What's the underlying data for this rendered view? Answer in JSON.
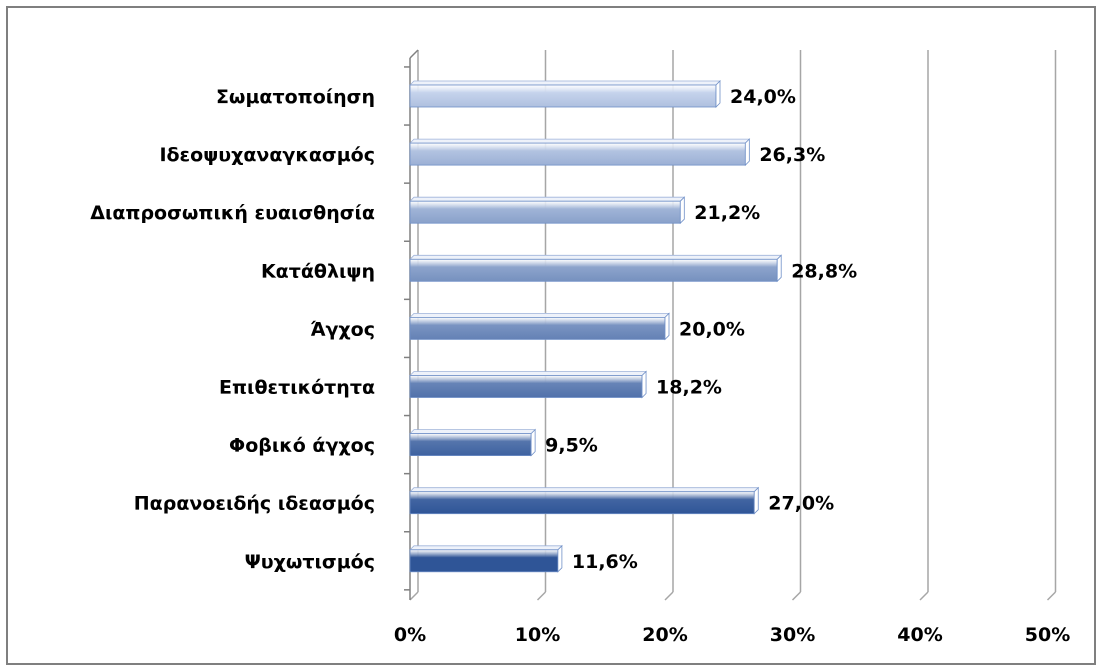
{
  "chart_data": {
    "type": "bar",
    "orientation": "horizontal",
    "categories": [
      "Σωματοποίηση",
      "Ιδεοψυχαναγκασμός",
      "Διαπροσωπική ευαισθησία",
      "Κατάθλιψη",
      "Άγχος",
      "Επιθετικότητα",
      "Φοβικό άγχος",
      "Παρανοειδής ιδεασμός",
      "Ψυχωτισμός"
    ],
    "values": [
      24.0,
      26.3,
      21.2,
      28.8,
      20.0,
      18.2,
      9.5,
      27.0,
      11.6
    ],
    "value_labels": [
      "24,0%",
      "26,3%",
      "21,2%",
      "28,8%",
      "20,0%",
      "18,2%",
      "9,5%",
      "27,0%",
      "11,6%"
    ],
    "xlim": [
      0,
      50
    ],
    "x_ticks": [
      0,
      10,
      20,
      30,
      40,
      50
    ],
    "x_tick_labels": [
      "0%",
      "10%",
      "20%",
      "30%",
      "40%",
      "50%"
    ],
    "grid": true,
    "legend": "none",
    "colors": {
      "bar_light": "#c5d3ec",
      "bar_dark": "#2f5597",
      "gridline": "#a6a6a6",
      "frame": "#7f7f7f"
    }
  }
}
